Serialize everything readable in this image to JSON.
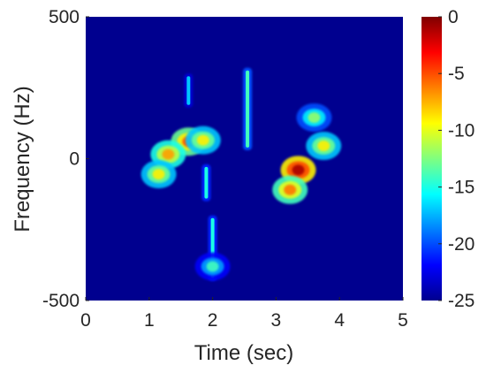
{
  "chart_data": {
    "type": "heatmap",
    "title": "",
    "xlabel": "Time (sec)",
    "ylabel": "Frequency (Hz)",
    "xlim": [
      0,
      5
    ],
    "ylim": [
      -500,
      500
    ],
    "xticks": [
      "0",
      "1",
      "2",
      "3",
      "4",
      "5"
    ],
    "yticks": [
      "500",
      "0",
      "-500"
    ],
    "colorbar": {
      "range": [
        -25,
        0
      ],
      "ticks": [
        "0",
        "-5",
        "-10",
        "-15",
        "-20",
        "-25"
      ],
      "colormap": "jet"
    },
    "background_value_db": -25,
    "grid": false,
    "features": [
      {
        "kind": "blob",
        "t": 1.62,
        "f": 60,
        "level_db": -5
      },
      {
        "kind": "blob",
        "t": 1.3,
        "f": 15,
        "level_db": -7
      },
      {
        "kind": "blob",
        "t": 1.15,
        "f": -55,
        "level_db": -9
      },
      {
        "kind": "blob",
        "t": 1.85,
        "f": 65,
        "level_db": -9
      },
      {
        "kind": "blob",
        "t": 3.35,
        "f": -40,
        "level_db": -1
      },
      {
        "kind": "blob",
        "t": 3.22,
        "f": -110,
        "level_db": -6
      },
      {
        "kind": "blob",
        "t": 3.75,
        "f": 45,
        "level_db": -9
      },
      {
        "kind": "blob",
        "t": 3.6,
        "f": 145,
        "level_db": -12
      },
      {
        "kind": "streak",
        "t": 2.0,
        "f_from": -200,
        "f_to": -430,
        "level_db": -15
      },
      {
        "kind": "streak",
        "t": 2.55,
        "f_from": 30,
        "f_to": 320,
        "level_db": -14
      },
      {
        "kind": "streak",
        "t": 1.9,
        "f_from": -20,
        "f_to": -150,
        "level_db": -15
      },
      {
        "kind": "blob",
        "t": 2.0,
        "f": -380,
        "level_db": -14
      },
      {
        "kind": "streak",
        "t": 1.62,
        "f_from": 180,
        "f_to": 300,
        "level_db": -17
      }
    ],
    "colors": {
      "background": "#00008f",
      "axis_text": "#262626"
    }
  }
}
